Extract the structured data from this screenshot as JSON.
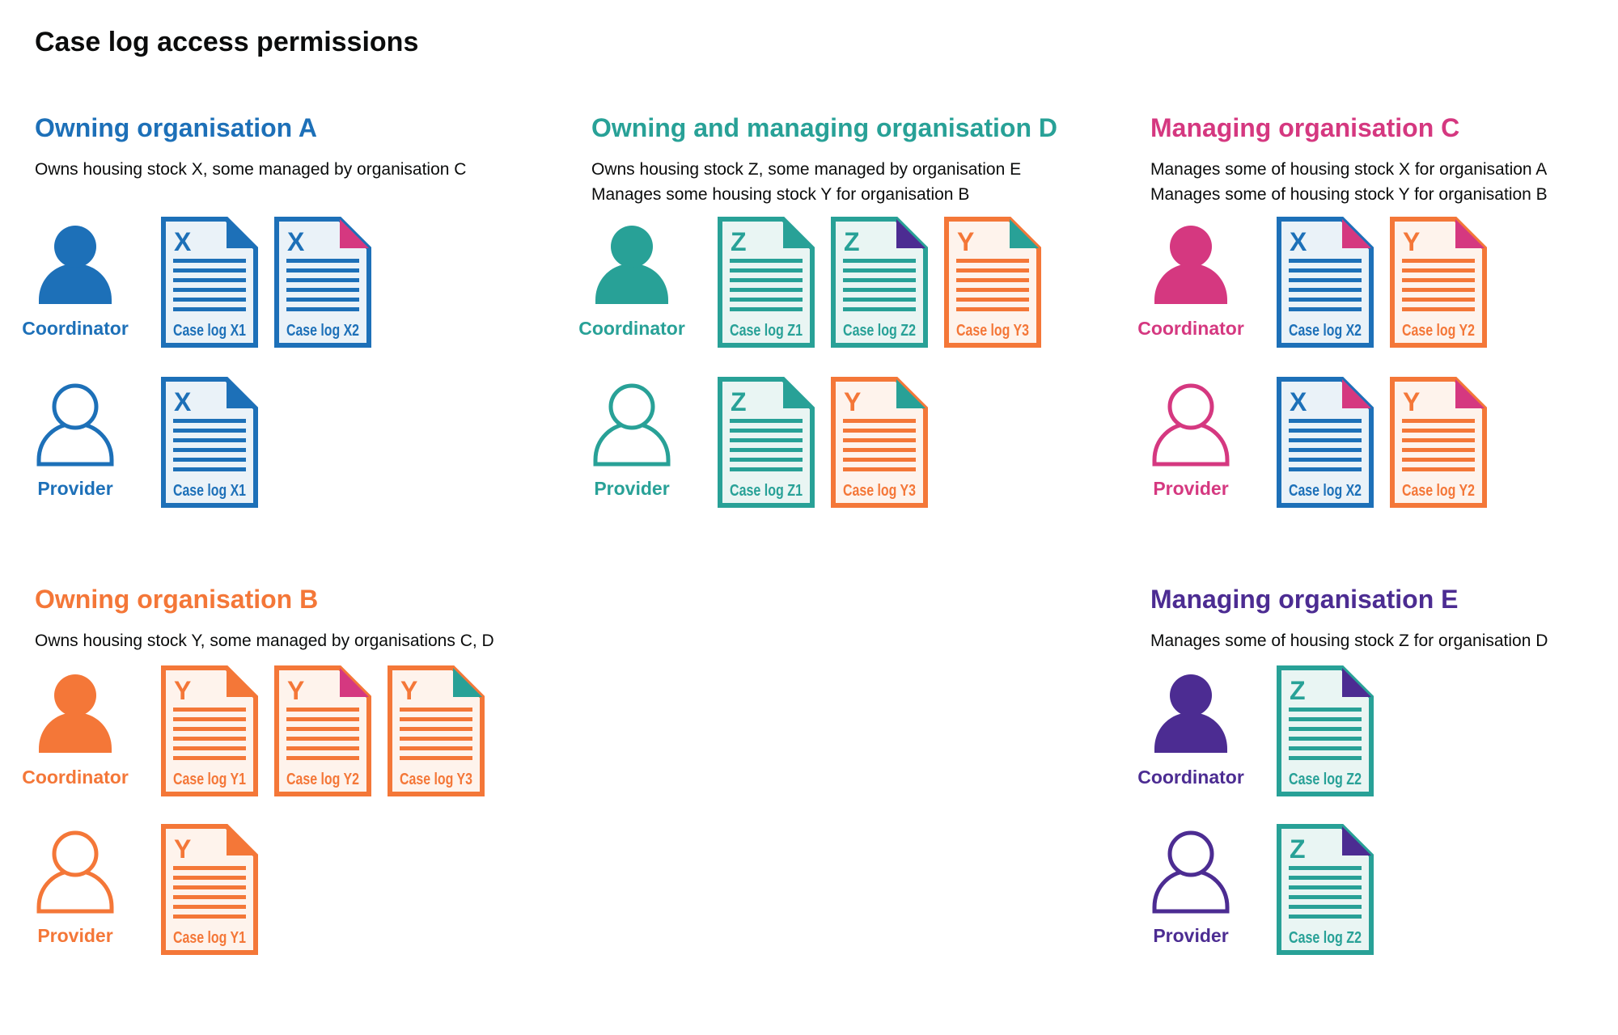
{
  "page_title": "Case log access permissions",
  "palette": {
    "blue": "#1d70b8",
    "teal": "#28a197",
    "pink": "#d53880",
    "orange": "#f47738",
    "purple": "#4c2c92",
    "text": "#0b0c0c",
    "tints": {
      "blue": "#eaf2f8",
      "teal": "#e9f5f3",
      "orange": "#fef3ec"
    }
  },
  "sections": [
    {
      "id": "org-a",
      "title": "Owning organisation A",
      "color": "blue",
      "description_lines": [
        "Owns housing stock X, some managed by organisation C"
      ],
      "rows": [
        {
          "role": "Coordinator",
          "person_style": "filled",
          "docs": [
            {
              "letter": "X",
              "label": "Case log X1",
              "color": "blue",
              "fold": "blue"
            },
            {
              "letter": "X",
              "label": "Case log X2",
              "color": "blue",
              "fold": "pink"
            }
          ]
        },
        {
          "role": "Provider",
          "person_style": "outline",
          "docs": [
            {
              "letter": "X",
              "label": "Case log X1",
              "color": "blue",
              "fold": "blue"
            }
          ]
        }
      ]
    },
    {
      "id": "org-d",
      "title": "Owning and managing organisation D",
      "color": "teal",
      "description_lines": [
        "Owns housing stock Z, some managed by organisation E",
        "Manages some housing stock Y for organisation B"
      ],
      "rows": [
        {
          "role": "Coordinator",
          "person_style": "filled",
          "docs": [
            {
              "letter": "Z",
              "label": "Case log Z1",
              "color": "teal",
              "fold": "teal"
            },
            {
              "letter": "Z",
              "label": "Case log Z2",
              "color": "teal",
              "fold": "purple"
            },
            {
              "letter": "Y",
              "label": "Case log Y3",
              "color": "orange",
              "fold": "teal"
            }
          ]
        },
        {
          "role": "Provider",
          "person_style": "outline",
          "docs": [
            {
              "letter": "Z",
              "label": "Case log Z1",
              "color": "teal",
              "fold": "teal"
            },
            {
              "letter": "Y",
              "label": "Case log Y3",
              "color": "orange",
              "fold": "teal"
            }
          ]
        }
      ]
    },
    {
      "id": "org-c",
      "title": "Managing organisation C",
      "color": "pink",
      "description_lines": [
        "Manages some of housing stock X for organisation A",
        "Manages some of housing stock Y for organisation B"
      ],
      "rows": [
        {
          "role": "Coordinator",
          "person_style": "filled",
          "docs": [
            {
              "letter": "X",
              "label": "Case log X2",
              "color": "blue",
              "fold": "pink"
            },
            {
              "letter": "Y",
              "label": "Case log Y2",
              "color": "orange",
              "fold": "pink"
            }
          ]
        },
        {
          "role": "Provider",
          "person_style": "outline",
          "docs": [
            {
              "letter": "X",
              "label": "Case log X2",
              "color": "blue",
              "fold": "pink"
            },
            {
              "letter": "Y",
              "label": "Case log Y2",
              "color": "orange",
              "fold": "pink"
            }
          ]
        }
      ]
    },
    {
      "id": "org-b",
      "title": "Owning organisation B",
      "color": "orange",
      "description_lines": [
        "Owns housing stock Y, some managed by organisations C, D"
      ],
      "rows": [
        {
          "role": "Coordinator",
          "person_style": "filled",
          "docs": [
            {
              "letter": "Y",
              "label": "Case log Y1",
              "color": "orange",
              "fold": "orange"
            },
            {
              "letter": "Y",
              "label": "Case log Y2",
              "color": "orange",
              "fold": "pink"
            },
            {
              "letter": "Y",
              "label": "Case log Y3",
              "color": "orange",
              "fold": "teal"
            }
          ]
        },
        {
          "role": "Provider",
          "person_style": "outline",
          "docs": [
            {
              "letter": "Y",
              "label": "Case log Y1",
              "color": "orange",
              "fold": "orange"
            }
          ]
        }
      ]
    },
    {
      "id": "org-e",
      "title": "Managing organisation E",
      "color": "purple",
      "description_lines": [
        "Manages some of housing stock Z for organisation D"
      ],
      "rows": [
        {
          "role": "Coordinator",
          "person_style": "filled",
          "docs": [
            {
              "letter": "Z",
              "label": "Case log Z2",
              "color": "teal",
              "fold": "purple"
            }
          ]
        },
        {
          "role": "Provider",
          "person_style": "outline",
          "docs": [
            {
              "letter": "Z",
              "label": "Case log Z2",
              "color": "teal",
              "fold": "purple"
            }
          ]
        }
      ]
    }
  ]
}
